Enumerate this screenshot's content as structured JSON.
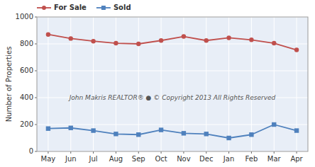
{
  "chart_data": {
    "type": "line",
    "categories": [
      "May",
      "Jun",
      "Jul",
      "Aug",
      "Sep",
      "Oct",
      "Nov",
      "Dec",
      "Jan",
      "Feb",
      "Mar",
      "Apr"
    ],
    "series": [
      {
        "name": "For Sale",
        "color": "#c0504d",
        "marker": "circle",
        "values": [
          870,
          840,
          820,
          805,
          800,
          825,
          855,
          825,
          845,
          830,
          805,
          755
        ]
      },
      {
        "name": "Sold",
        "color": "#4f81bd",
        "marker": "square",
        "values": [
          170,
          175,
          155,
          130,
          125,
          160,
          135,
          130,
          100,
          125,
          200,
          155
        ]
      }
    ],
    "y_label": "Number of Properties",
    "ylim": [
      0,
      1000
    ],
    "yticks": [
      0,
      200,
      400,
      600,
      800,
      1000
    ],
    "grid": true,
    "legend": "upper left",
    "annotations": [
      "John Makris REALTOR®  ●  © Copyright 2013 All Rights Reserved"
    ]
  }
}
